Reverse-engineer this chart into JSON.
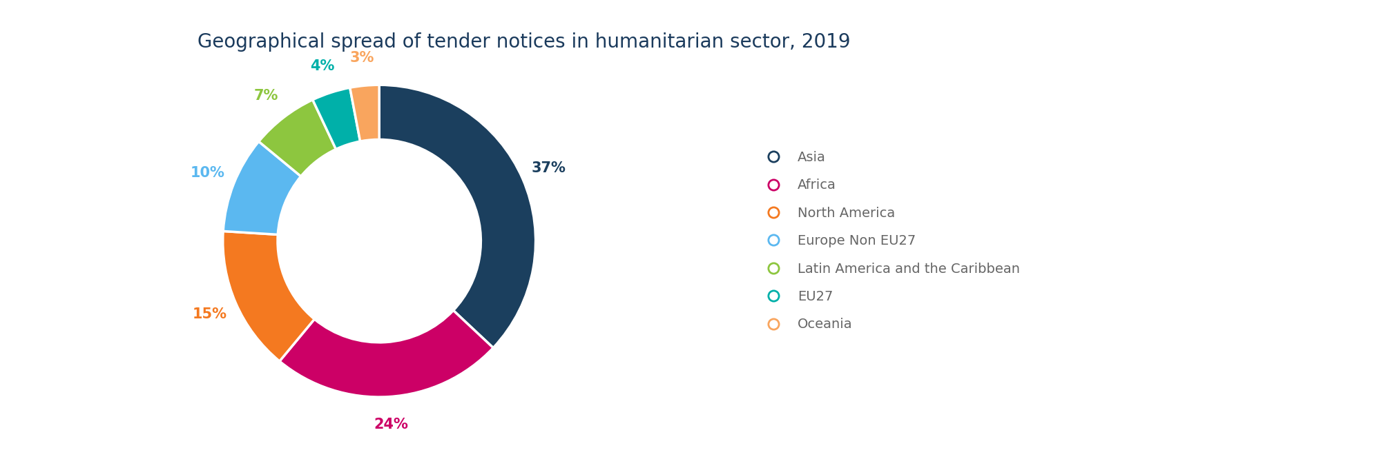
{
  "title": "Geographical spread of tender notices in humanitarian sector, 2019",
  "title_color": "#1a3a5c",
  "title_fontsize": 20,
  "categories": [
    "Asia",
    "Africa",
    "North America",
    "Europe Non EU27",
    "Latin America and the Caribbean",
    "EU27",
    "Oceania"
  ],
  "values": [
    37,
    24,
    15,
    10,
    7,
    4,
    3
  ],
  "colors": [
    "#1b3f5e",
    "#cc0066",
    "#f47920",
    "#5bb8f0",
    "#8dc63f",
    "#00b0a9",
    "#f9a55e"
  ],
  "label_colors": [
    "#1b3f5e",
    "#cc0066",
    "#f47920",
    "#5bb8f0",
    "#8dc63f",
    "#00b0a9",
    "#f9a55e"
  ],
  "legend_marker_colors": [
    "#1b3f5e",
    "#cc0066",
    "#f47920",
    "#5bb8f0",
    "#8dc63f",
    "#00b0a9",
    "#f9a55e"
  ],
  "legend_text_color": "#666666",
  "background_color": "#ffffff",
  "donut_width": 0.35,
  "label_fontsize": 15,
  "legend_fontsize": 14,
  "start_angle": 90,
  "figsize": [
    19.97,
    6.66
  ]
}
